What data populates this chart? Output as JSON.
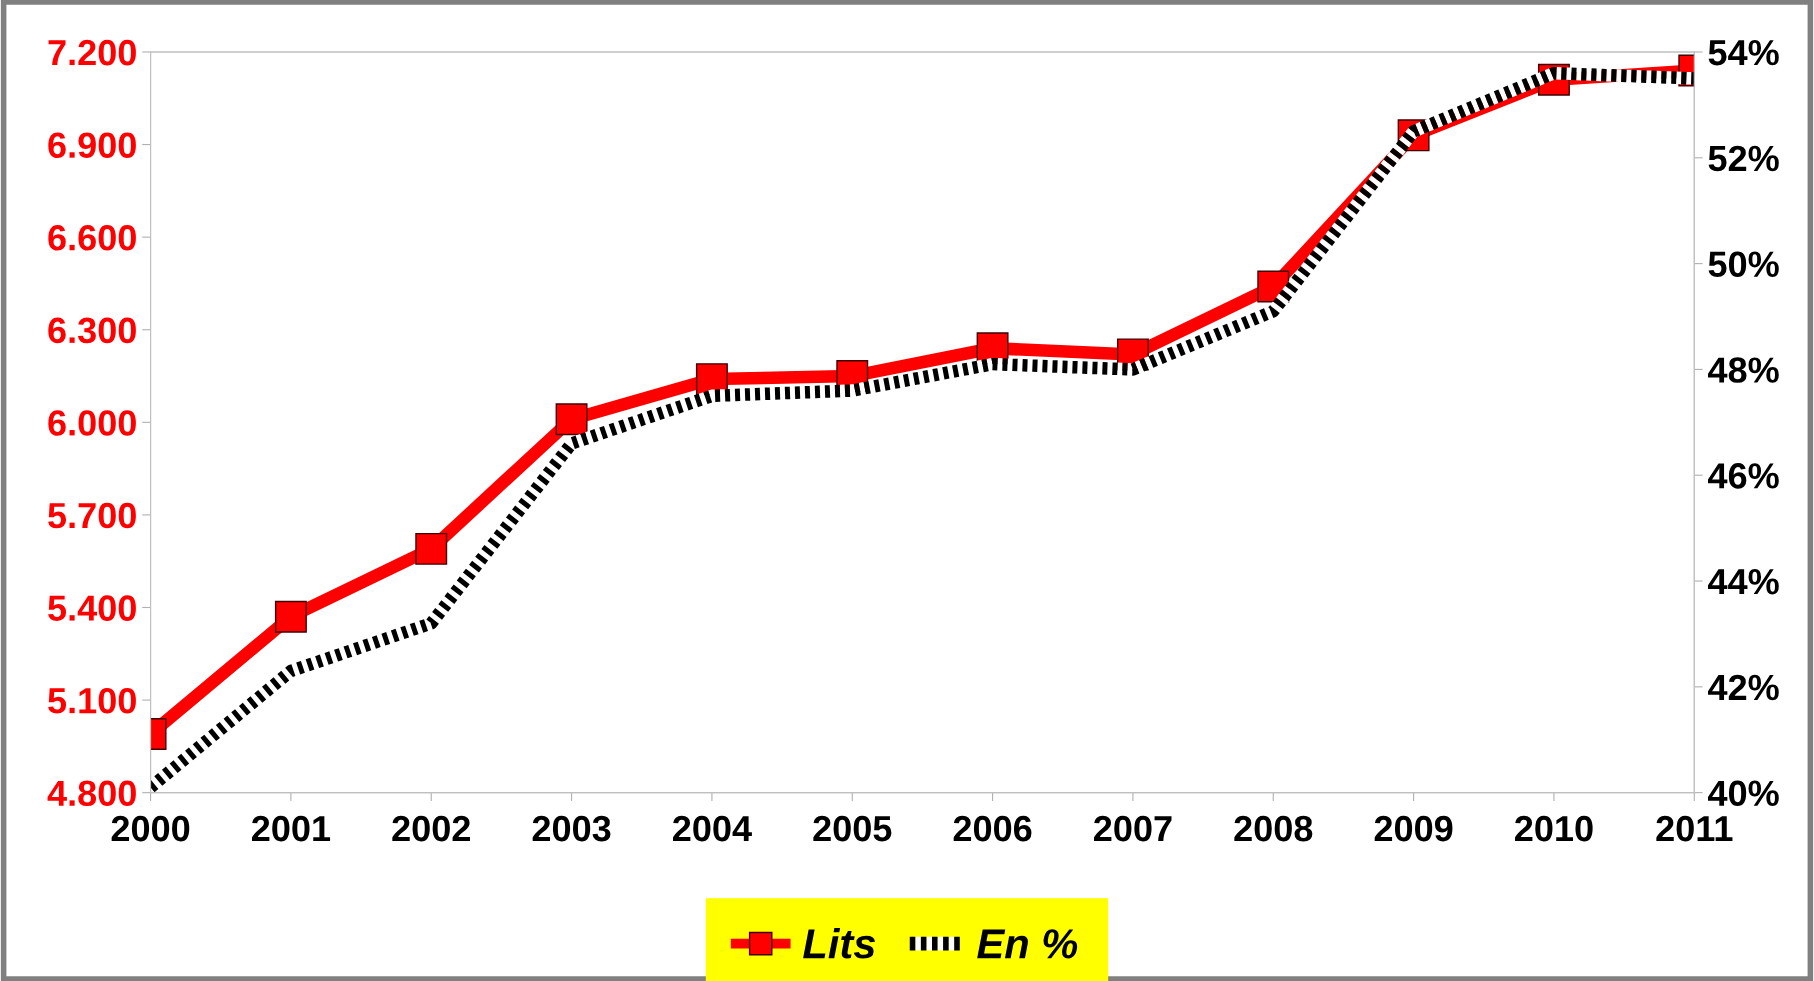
{
  "chart_data": {
    "type": "line",
    "categories": [
      "2000",
      "2001",
      "2002",
      "2003",
      "2004",
      "2005",
      "2006",
      "2007",
      "2008",
      "2009",
      "2010",
      "2011"
    ],
    "series": [
      {
        "name": "Lits",
        "color": "#ff0000",
        "marker": "square",
        "line_style": "solid",
        "values": [
          4.99,
          5.37,
          5.59,
          6.01,
          6.14,
          6.15,
          6.24,
          6.22,
          6.44,
          6.93,
          7.11,
          7.14
        ]
      },
      {
        "name": "En %",
        "color": "#000000",
        "marker": "none",
        "line_style": "dashed",
        "axis": "y2",
        "values": [
          40.1,
          42.3,
          43.2,
          46.6,
          47.5,
          47.6,
          48.1,
          48.0,
          49.1,
          52.5,
          53.6,
          53.5
        ]
      }
    ],
    "ylim": [
      4.8,
      7.2
    ],
    "yticks": [
      {
        "value": 4.8,
        "label": "4.800"
      },
      {
        "value": 5.1,
        "label": "5.100"
      },
      {
        "value": 5.4,
        "label": "5.400"
      },
      {
        "value": 5.7,
        "label": "5.700"
      },
      {
        "value": 6.0,
        "label": "6.000"
      },
      {
        "value": 6.3,
        "label": "6.300"
      },
      {
        "value": 6.6,
        "label": "6.600"
      },
      {
        "value": 6.9,
        "label": "6.900"
      },
      {
        "value": 7.2,
        "label": "7.200"
      }
    ],
    "y2lim": [
      40,
      54
    ],
    "y2ticks": [
      {
        "value": 40,
        "label": "40%"
      },
      {
        "value": 42,
        "label": "42%"
      },
      {
        "value": 44,
        "label": "44%"
      },
      {
        "value": 46,
        "label": "46%"
      },
      {
        "value": 48,
        "label": "48%"
      },
      {
        "value": 50,
        "label": "50%"
      },
      {
        "value": 52,
        "label": "52%"
      },
      {
        "value": 54,
        "label": "54%"
      }
    ],
    "grid": false,
    "legend": "bottom"
  }
}
